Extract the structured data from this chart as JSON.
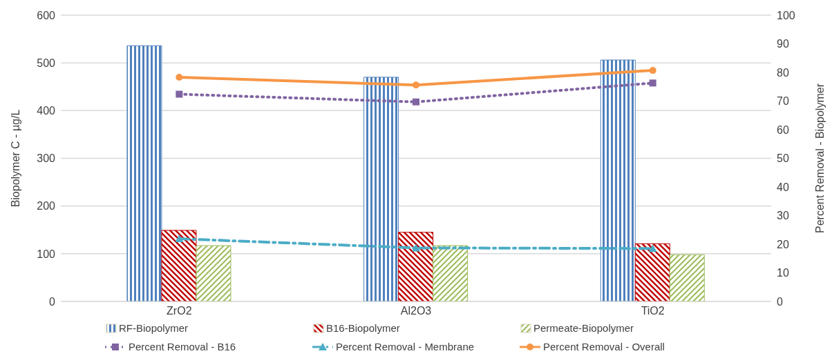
{
  "chart_data": {
    "type": "bar",
    "ylabel": "Biopolymer C - µg/L",
    "y2label": "Percent Removal - Biopolymer",
    "categories": [
      "ZrO2",
      "Al2O3",
      "TiO2"
    ],
    "series": [
      {
        "name": "RF-Biopolymer",
        "color": "#4f81bd",
        "values": [
          536,
          470,
          506
        ]
      },
      {
        "name": "B16-Biopolymer",
        "color": "#c00000",
        "values": [
          149,
          145,
          121
        ]
      },
      {
        "name": "Permeate-Biopolymer",
        "color": "#9bbb59",
        "values": [
          117,
          117,
          98
        ]
      },
      {
        "name": "Percent Removal - B16",
        "type": "line",
        "axis": "y2",
        "color": "#8064a2",
        "marker": "square",
        "line_style": "dotted",
        "values": [
          72.4,
          69.7,
          76.3
        ]
      },
      {
        "name": "Percent Removal - Membrane",
        "type": "line",
        "axis": "y2",
        "color": "#4bacc6",
        "marker": "triangle",
        "line_style": "dashdot",
        "values": [
          21.9,
          18.7,
          18.5
        ]
      },
      {
        "name": "Percent Removal - Overall",
        "type": "line",
        "axis": "y2",
        "color": "#f79646",
        "marker": "circle",
        "line_style": "solid",
        "values": [
          78.3,
          75.6,
          80.7
        ]
      }
    ],
    "ylim": [
      0,
      600
    ],
    "yticks": [
      0,
      100,
      200,
      300,
      400,
      500,
      600
    ],
    "y2lim": [
      0,
      100
    ],
    "y2ticks": [
      0,
      10,
      20,
      30,
      40,
      50,
      60,
      70,
      80,
      90,
      100
    ],
    "grid": "y",
    "legend": "bottom"
  }
}
